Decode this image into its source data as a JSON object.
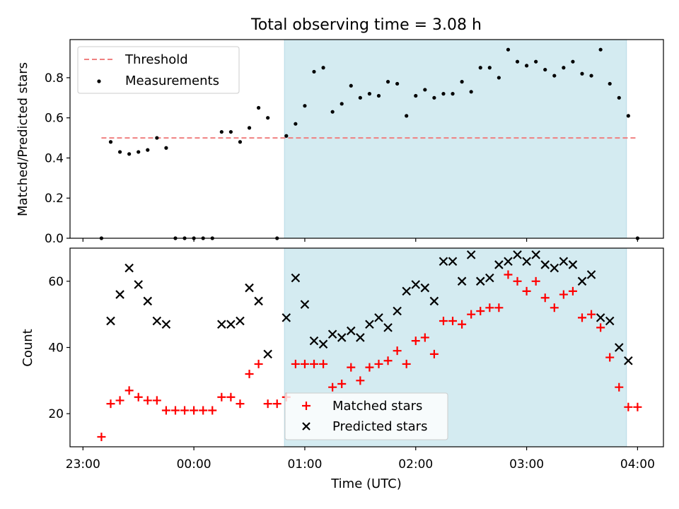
{
  "title": "Total observing time = 3.08 h",
  "chart_data": [
    {
      "type": "scatter",
      "ylabel": "Matched/Predicted stars",
      "xlim": [
        "22:53",
        "04:14"
      ],
      "ylim": [
        0,
        0.99
      ],
      "yticks": [
        0.0,
        0.2,
        0.4,
        0.6,
        0.8
      ],
      "ytick_labels": [
        "0.0",
        "0.2",
        "0.4",
        "0.6",
        "0.8"
      ],
      "shaded_span": [
        "00:49",
        "03:54"
      ],
      "shaded_color": "#d4ebf1",
      "threshold": {
        "name": "Threshold",
        "y": 0.5,
        "x": [
          "23:10",
          "03:59"
        ],
        "color": "#f08080",
        "style": "dashed"
      },
      "series": [
        {
          "name": "Measurements",
          "color": "#000000",
          "marker": "dot",
          "x": [
            "23:10",
            "23:15",
            "23:20",
            "23:25",
            "23:30",
            "23:35",
            "23:40",
            "23:45",
            "23:50",
            "23:55",
            "00:00",
            "00:05",
            "00:10",
            "00:15",
            "00:20",
            "00:25",
            "00:30",
            "00:35",
            "00:40",
            "00:45",
            "00:50",
            "00:55",
            "01:00",
            "01:05",
            "01:10",
            "01:15",
            "01:20",
            "01:25",
            "01:30",
            "01:35",
            "01:40",
            "01:45",
            "01:50",
            "01:55",
            "02:00",
            "02:05",
            "02:10",
            "02:15",
            "02:20",
            "02:25",
            "02:30",
            "02:35",
            "02:40",
            "02:45",
            "02:50",
            "02:55",
            "03:00",
            "03:05",
            "03:10",
            "03:15",
            "03:20",
            "03:25",
            "03:30",
            "03:35",
            "03:40",
            "03:45",
            "03:50",
            "03:55",
            "04:00"
          ],
          "y": [
            0,
            0.48,
            0.43,
            0.42,
            0.43,
            0.44,
            0.5,
            0.45,
            0,
            0,
            0,
            0,
            0,
            0.53,
            0.53,
            0.48,
            0.55,
            0.65,
            0.6,
            0,
            0.51,
            0.57,
            0.66,
            0.83,
            0.85,
            0.63,
            0.67,
            0.76,
            0.7,
            0.72,
            0.71,
            0.78,
            0.77,
            0.61,
            0.71,
            0.74,
            0.7,
            0.72,
            0.72,
            0.78,
            0.73,
            0.85,
            0.85,
            0.8,
            0.94,
            0.88,
            0.86,
            0.88,
            0.84,
            0.81,
            0.85,
            0.88,
            0.82,
            0.81,
            0.94,
            0.77,
            0.7,
            0.61,
            0
          ]
        }
      ]
    },
    {
      "type": "scatter",
      "xlabel": "Time (UTC)",
      "ylabel": "Count",
      "xlim": [
        "22:53",
        "04:14"
      ],
      "xticks": [
        "23:00",
        "00:00",
        "01:00",
        "02:00",
        "03:00",
        "04:00"
      ],
      "ylim": [
        10,
        70
      ],
      "yticks": [
        20,
        40,
        60
      ],
      "shaded_span": [
        "00:49",
        "03:54"
      ],
      "legend": "lower center",
      "series": [
        {
          "name": "Matched stars",
          "color": "#ff0000",
          "marker": "plus",
          "x": [
            "23:10",
            "23:15",
            "23:20",
            "23:25",
            "23:30",
            "23:35",
            "23:40",
            "23:45",
            "23:50",
            "23:55",
            "00:00",
            "00:05",
            "00:10",
            "00:15",
            "00:20",
            "00:25",
            "00:30",
            "00:35",
            "00:40",
            "00:45",
            "00:50",
            "00:55",
            "01:00",
            "01:05",
            "01:10",
            "01:15",
            "01:20",
            "01:25",
            "01:30",
            "01:35",
            "01:40",
            "01:45",
            "01:50",
            "01:55",
            "02:00",
            "02:05",
            "02:10",
            "02:15",
            "02:20",
            "02:25",
            "02:30",
            "02:35",
            "02:40",
            "02:45",
            "02:50",
            "02:55",
            "03:00",
            "03:05",
            "03:10",
            "03:15",
            "03:20",
            "03:25",
            "03:30",
            "03:35",
            "03:40",
            "03:45",
            "03:50",
            "03:55",
            "04:00"
          ],
          "y": [
            13,
            23,
            24,
            27,
            25,
            24,
            24,
            21,
            21,
            21,
            21,
            21,
            21,
            25,
            25,
            23,
            32,
            35,
            23,
            23,
            25,
            35,
            35,
            35,
            35,
            28,
            29,
            34,
            30,
            34,
            35,
            36,
            39,
            35,
            42,
            43,
            38,
            48,
            48,
            47,
            50,
            51,
            52,
            52,
            62,
            60,
            57,
            60,
            55,
            52,
            56,
            57,
            49,
            50,
            46,
            37,
            28,
            22,
            22
          ]
        },
        {
          "name": "Predicted stars",
          "color": "#000000",
          "marker": "x",
          "x": [
            "23:15",
            "23:20",
            "23:25",
            "23:30",
            "23:35",
            "23:40",
            "23:45",
            "00:15",
            "00:20",
            "00:25",
            "00:30",
            "00:35",
            "00:40",
            "00:50",
            "00:55",
            "01:00",
            "01:05",
            "01:10",
            "01:15",
            "01:20",
            "01:25",
            "01:30",
            "01:35",
            "01:40",
            "01:45",
            "01:50",
            "01:55",
            "02:00",
            "02:05",
            "02:10",
            "02:15",
            "02:20",
            "02:25",
            "02:30",
            "02:35",
            "02:40",
            "02:45",
            "02:50",
            "02:55",
            "03:00",
            "03:05",
            "03:10",
            "03:15",
            "03:20",
            "03:25",
            "03:30",
            "03:35",
            "03:40",
            "03:45",
            "03:50",
            "03:55"
          ],
          "y": [
            48,
            56,
            64,
            59,
            54,
            48,
            47,
            47,
            47,
            48,
            58,
            54,
            38,
            49,
            61,
            53,
            42,
            41,
            44,
            43,
            45,
            43,
            47,
            49,
            46,
            51,
            57,
            59,
            58,
            54,
            66,
            66,
            60,
            68,
            60,
            61,
            65,
            66,
            68,
            66,
            68,
            65,
            64,
            66,
            65,
            60,
            62,
            49,
            48,
            40,
            36
          ]
        }
      ]
    }
  ]
}
